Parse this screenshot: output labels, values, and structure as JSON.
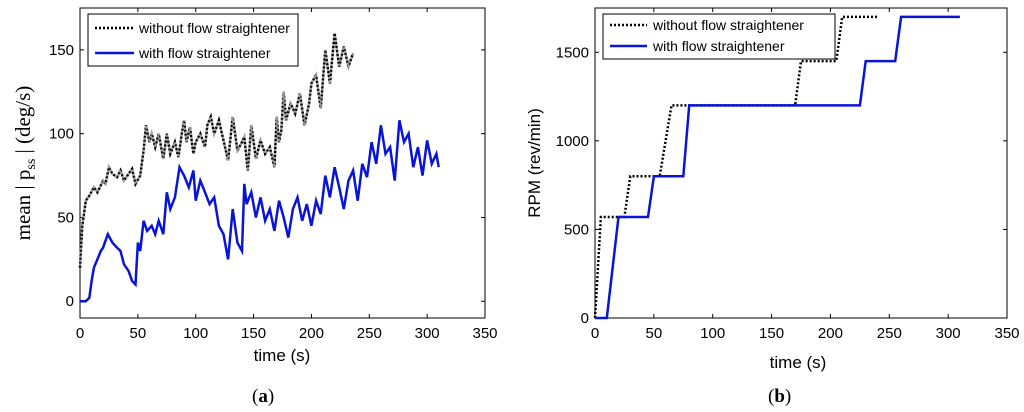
{
  "colors": {
    "without": "#000000",
    "with": "#0a14d6"
  },
  "chart_data": [
    {
      "type": "line",
      "panel_label": "(a)",
      "panel_letter": "a",
      "xlabel": "time (s)",
      "ylabel_main": "mean | p",
      "ylabel_sub": "ss",
      "ylabel_tail": " | (deg/s)",
      "xlim": [
        0,
        350
      ],
      "ylim": [
        -10,
        175
      ],
      "xticks": [
        0,
        50,
        100,
        150,
        200,
        250,
        300,
        350
      ],
      "yticks": [
        0,
        50,
        100,
        150
      ],
      "legend_position": "top-left",
      "series": [
        {
          "name": "without flow straightener",
          "style": "dotted",
          "x": [
            0,
            2,
            5,
            8,
            12,
            15,
            20,
            22,
            25,
            28,
            32,
            35,
            38,
            42,
            45,
            48,
            52,
            55,
            57,
            60,
            62,
            65,
            68,
            72,
            75,
            78,
            82,
            85,
            88,
            90,
            92,
            95,
            98,
            100,
            104,
            108,
            110,
            113,
            116,
            120,
            124,
            128,
            132,
            136,
            140,
            142,
            145,
            148,
            152,
            156,
            160,
            164,
            168,
            170,
            172,
            174,
            176,
            178,
            182,
            186,
            190,
            194,
            198,
            200,
            204,
            208,
            212,
            216,
            220,
            224,
            228,
            232,
            236
          ],
          "values": [
            20,
            45,
            60,
            63,
            68,
            65,
            72,
            70,
            80,
            76,
            74,
            78,
            72,
            76,
            79,
            70,
            75,
            90,
            105,
            95,
            100,
            92,
            100,
            85,
            100,
            88,
            95,
            86,
            100,
            108,
            95,
            104,
            88,
            95,
            100,
            92,
            105,
            110,
            100,
            108,
            96,
            84,
            110,
            90,
            95,
            98,
            78,
            105,
            85,
            96,
            88,
            92,
            80,
            110,
            95,
            102,
            125,
            108,
            118,
            112,
            124,
            105,
            118,
            130,
            135,
            115,
            150,
            130,
            160,
            140,
            152,
            140,
            148
          ]
        },
        {
          "name": "with flow straightener",
          "style": "solid",
          "x": [
            0,
            5,
            8,
            10,
            12,
            15,
            18,
            20,
            24,
            28,
            32,
            35,
            38,
            42,
            45,
            48,
            50,
            52,
            55,
            58,
            62,
            65,
            68,
            72,
            75,
            78,
            82,
            86,
            90,
            94,
            98,
            100,
            104,
            108,
            112,
            116,
            120,
            124,
            128,
            132,
            136,
            140,
            142,
            144,
            148,
            152,
            156,
            160,
            164,
            168,
            172,
            176,
            180,
            184,
            188,
            192,
            196,
            200,
            204,
            208,
            212,
            216,
            220,
            224,
            228,
            232,
            236,
            240,
            244,
            248,
            252,
            256,
            260,
            264,
            268,
            272,
            276,
            280,
            284,
            288,
            292,
            296,
            300,
            304,
            308,
            310
          ],
          "values": [
            0,
            0,
            2,
            12,
            20,
            25,
            30,
            32,
            40,
            35,
            32,
            30,
            22,
            18,
            12,
            10,
            35,
            30,
            48,
            42,
            45,
            40,
            48,
            40,
            65,
            55,
            62,
            80,
            75,
            68,
            78,
            60,
            72,
            65,
            58,
            62,
            45,
            40,
            25,
            55,
            35,
            30,
            70,
            58,
            65,
            50,
            62,
            48,
            55,
            42,
            60,
            50,
            38,
            55,
            62,
            48,
            58,
            45,
            60,
            52,
            75,
            62,
            80,
            68,
            55,
            72,
            78,
            60,
            82,
            74,
            95,
            82,
            105,
            88,
            92,
            72,
            108,
            95,
            100,
            80,
            92,
            75,
            96,
            82,
            88,
            80
          ]
        }
      ]
    },
    {
      "type": "line",
      "panel_label": "(b)",
      "panel_letter": "b",
      "xlabel": "time (s)",
      "ylabel": "RPM (rev/min)",
      "xlim": [
        0,
        350
      ],
      "ylim": [
        0,
        1750
      ],
      "xticks": [
        0,
        50,
        100,
        150,
        200,
        250,
        300,
        350
      ],
      "yticks": [
        0,
        500,
        1000,
        1500
      ],
      "legend_position": "top-left",
      "series": [
        {
          "name": "without flow straightener",
          "style": "dotted",
          "x": [
            0,
            5,
            25,
            30,
            55,
            65,
            170,
            175,
            205,
            210,
            240
          ],
          "values": [
            0,
            570,
            570,
            800,
            800,
            1200,
            1200,
            1450,
            1450,
            1700,
            1700
          ]
        },
        {
          "name": "with flow straightener",
          "style": "solid",
          "x": [
            0,
            7,
            10,
            20,
            45,
            50,
            75,
            80,
            225,
            230,
            255,
            260,
            310
          ],
          "values": [
            0,
            0,
            0,
            570,
            570,
            800,
            800,
            1200,
            1200,
            1450,
            1450,
            1700,
            1700
          ]
        }
      ]
    }
  ]
}
